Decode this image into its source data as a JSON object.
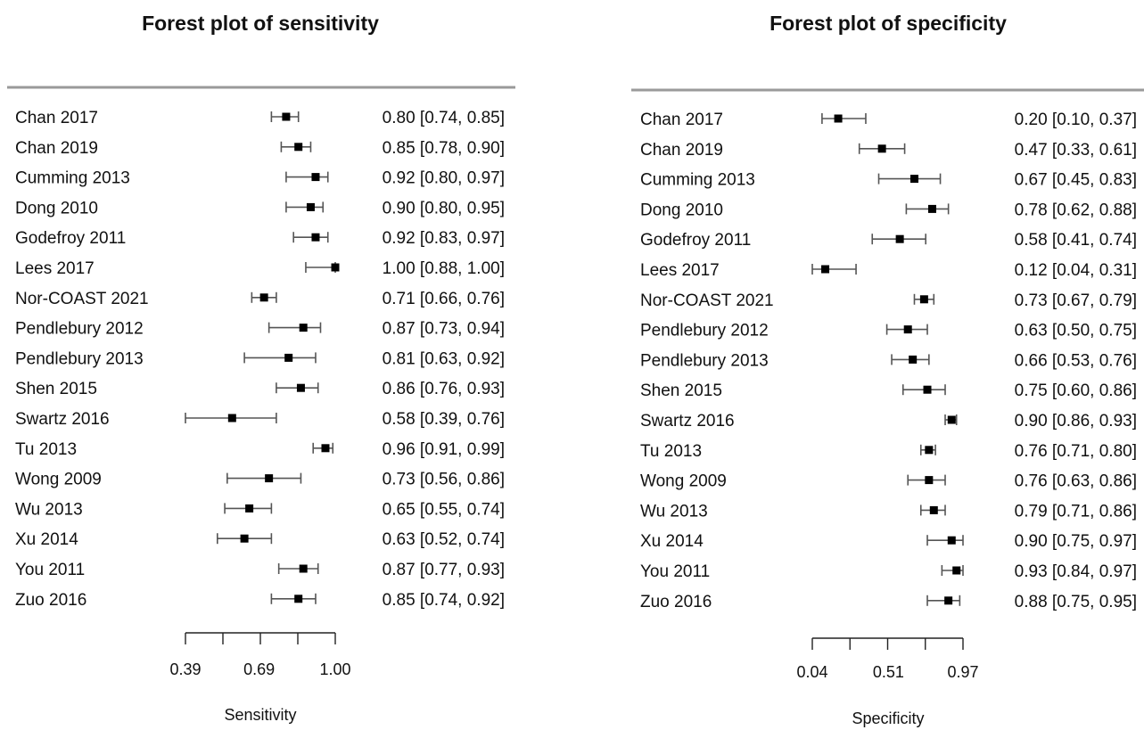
{
  "chart_data": [
    {
      "type": "forest",
      "title": "Forest plot of sensitivity",
      "xlabel": "Sensitivity",
      "xticks": [
        "0.39",
        "0.69",
        "1.00"
      ],
      "xlim": [
        0.39,
        1.0
      ],
      "studies": [
        {
          "label": "Chan 2017",
          "est": 0.8,
          "lo": 0.74,
          "hi": 0.85,
          "ci_text": "0.80 [0.74, 0.85]"
        },
        {
          "label": "Chan 2019",
          "est": 0.85,
          "lo": 0.78,
          "hi": 0.9,
          "ci_text": "0.85 [0.78, 0.90]"
        },
        {
          "label": "Cumming 2013",
          "est": 0.92,
          "lo": 0.8,
          "hi": 0.97,
          "ci_text": "0.92 [0.80, 0.97]"
        },
        {
          "label": "Dong 2010",
          "est": 0.9,
          "lo": 0.8,
          "hi": 0.95,
          "ci_text": "0.90 [0.80, 0.95]"
        },
        {
          "label": "Godefroy 2011",
          "est": 0.92,
          "lo": 0.83,
          "hi": 0.97,
          "ci_text": "0.92 [0.83, 0.97]"
        },
        {
          "label": "Lees 2017",
          "est": 1.0,
          "lo": 0.88,
          "hi": 1.0,
          "ci_text": "1.00 [0.88, 1.00]"
        },
        {
          "label": "Nor-COAST 2021",
          "est": 0.71,
          "lo": 0.66,
          "hi": 0.76,
          "ci_text": "0.71 [0.66, 0.76]"
        },
        {
          "label": "Pendlebury 2012",
          "est": 0.87,
          "lo": 0.73,
          "hi": 0.94,
          "ci_text": "0.87 [0.73, 0.94]"
        },
        {
          "label": "Pendlebury 2013",
          "est": 0.81,
          "lo": 0.63,
          "hi": 0.92,
          "ci_text": "0.81 [0.63, 0.92]"
        },
        {
          "label": "Shen 2015",
          "est": 0.86,
          "lo": 0.76,
          "hi": 0.93,
          "ci_text": "0.86 [0.76, 0.93]"
        },
        {
          "label": "Swartz 2016",
          "est": 0.58,
          "lo": 0.39,
          "hi": 0.76,
          "ci_text": "0.58 [0.39, 0.76]"
        },
        {
          "label": "Tu 2013",
          "est": 0.96,
          "lo": 0.91,
          "hi": 0.99,
          "ci_text": "0.96 [0.91, 0.99]"
        },
        {
          "label": "Wong 2009",
          "est": 0.73,
          "lo": 0.56,
          "hi": 0.86,
          "ci_text": "0.73 [0.56, 0.86]"
        },
        {
          "label": "Wu 2013",
          "est": 0.65,
          "lo": 0.55,
          "hi": 0.74,
          "ci_text": "0.65 [0.55, 0.74]"
        },
        {
          "label": "Xu 2014",
          "est": 0.63,
          "lo": 0.52,
          "hi": 0.74,
          "ci_text": "0.63 [0.52, 0.74]"
        },
        {
          "label": "You 2011",
          "est": 0.87,
          "lo": 0.77,
          "hi": 0.93,
          "ci_text": "0.87 [0.77, 0.93]"
        },
        {
          "label": "Zuo 2016",
          "est": 0.85,
          "lo": 0.74,
          "hi": 0.92,
          "ci_text": "0.85 [0.74, 0.92]"
        }
      ]
    },
    {
      "type": "forest",
      "title": "Forest plot of specificity",
      "xlabel": "Specificity",
      "xticks": [
        "0.04",
        "0.51",
        "0.97"
      ],
      "xlim": [
        0.04,
        0.97
      ],
      "studies": [
        {
          "label": "Chan 2017",
          "est": 0.2,
          "lo": 0.1,
          "hi": 0.37,
          "ci_text": "0.20 [0.10, 0.37]"
        },
        {
          "label": "Chan 2019",
          "est": 0.47,
          "lo": 0.33,
          "hi": 0.61,
          "ci_text": "0.47 [0.33, 0.61]"
        },
        {
          "label": "Cumming 2013",
          "est": 0.67,
          "lo": 0.45,
          "hi": 0.83,
          "ci_text": "0.67 [0.45, 0.83]"
        },
        {
          "label": "Dong 2010",
          "est": 0.78,
          "lo": 0.62,
          "hi": 0.88,
          "ci_text": "0.78 [0.62, 0.88]"
        },
        {
          "label": "Godefroy 2011",
          "est": 0.58,
          "lo": 0.41,
          "hi": 0.74,
          "ci_text": "0.58 [0.41, 0.74]"
        },
        {
          "label": "Lees 2017",
          "est": 0.12,
          "lo": 0.04,
          "hi": 0.31,
          "ci_text": "0.12 [0.04, 0.31]"
        },
        {
          "label": "Nor-COAST 2021",
          "est": 0.73,
          "lo": 0.67,
          "hi": 0.79,
          "ci_text": "0.73 [0.67, 0.79]"
        },
        {
          "label": "Pendlebury 2012",
          "est": 0.63,
          "lo": 0.5,
          "hi": 0.75,
          "ci_text": "0.63 [0.50, 0.75]"
        },
        {
          "label": "Pendlebury 2013",
          "est": 0.66,
          "lo": 0.53,
          "hi": 0.76,
          "ci_text": "0.66 [0.53, 0.76]"
        },
        {
          "label": "Shen 2015",
          "est": 0.75,
          "lo": 0.6,
          "hi": 0.86,
          "ci_text": "0.75 [0.60, 0.86]"
        },
        {
          "label": "Swartz 2016",
          "est": 0.9,
          "lo": 0.86,
          "hi": 0.93,
          "ci_text": "0.90 [0.86, 0.93]"
        },
        {
          "label": "Tu 2013",
          "est": 0.76,
          "lo": 0.71,
          "hi": 0.8,
          "ci_text": "0.76 [0.71, 0.80]"
        },
        {
          "label": "Wong 2009",
          "est": 0.76,
          "lo": 0.63,
          "hi": 0.86,
          "ci_text": "0.76 [0.63, 0.86]"
        },
        {
          "label": "Wu 2013",
          "est": 0.79,
          "lo": 0.71,
          "hi": 0.86,
          "ci_text": "0.79 [0.71, 0.86]"
        },
        {
          "label": "Xu 2014",
          "est": 0.9,
          "lo": 0.75,
          "hi": 0.97,
          "ci_text": "0.90 [0.75, 0.97]"
        },
        {
          "label": "You 2011",
          "est": 0.93,
          "lo": 0.84,
          "hi": 0.97,
          "ci_text": "0.93 [0.84, 0.97]"
        },
        {
          "label": "Zuo 2016",
          "est": 0.88,
          "lo": 0.75,
          "hi": 0.95,
          "ci_text": "0.88 [0.75, 0.95]"
        }
      ]
    }
  ]
}
